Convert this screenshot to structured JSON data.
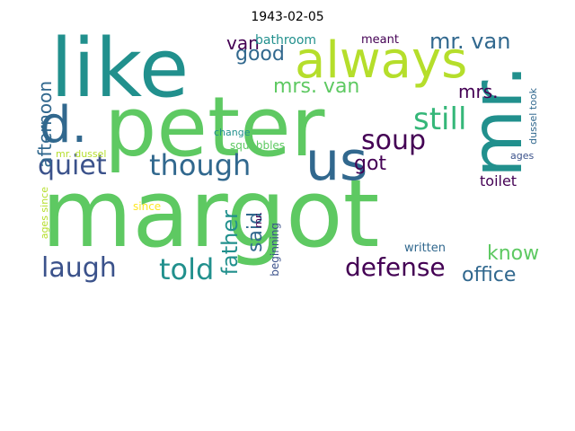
{
  "title": "1943-02-05",
  "palette": {
    "purple": "#440154",
    "indigo": "#3b528b",
    "teal": "#21908d",
    "green": "#5ec962",
    "yellow": "#fde725",
    "slate": "#31688e"
  },
  "words": {
    "margot": "margot",
    "peter": "peter",
    "like": "like",
    "always": "always",
    "mr_big": "mr.",
    "us": "us",
    "d": "d.",
    "quiet": "quiet",
    "though": "though",
    "soup": "soup",
    "still": "still",
    "told": "told",
    "laugh": "laugh",
    "defense": "defense",
    "office": "office",
    "know": "know",
    "father": "father",
    "said": "said",
    "got": "got",
    "good": "good",
    "mrs_van": "mrs. van",
    "mr_van": "mr. van",
    "mrs": "mrs.",
    "van": "van",
    "afternoon": "afternoon",
    "bathroom": "bathroom",
    "meant": "meant",
    "toilet": "toilet",
    "beginning": "beginning",
    "written": "written",
    "ages_since": "ages since",
    "mr_dussel": "mr. dussel",
    "dussel_took": "dussel took",
    "since": "since",
    "squabbles": "squabbles",
    "change": "change",
    "ages": "ages",
    "mr": "mr."
  }
}
